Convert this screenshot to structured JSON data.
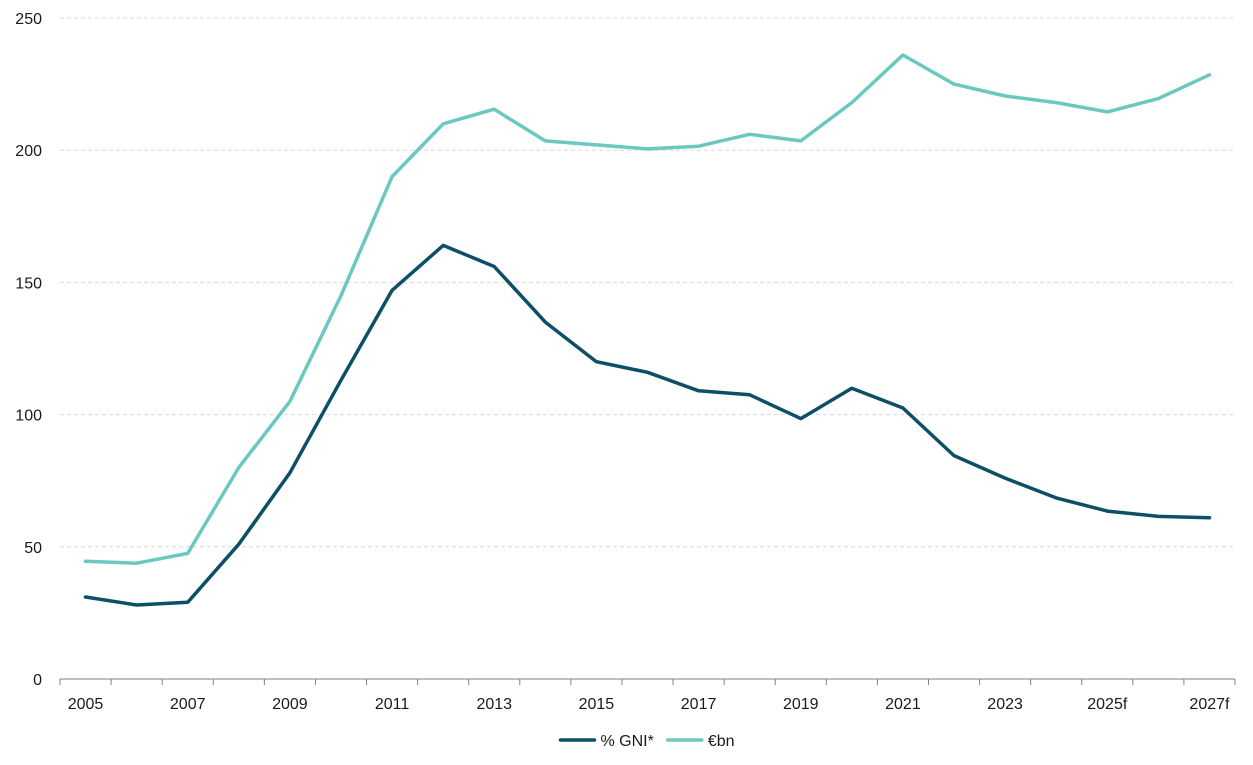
{
  "chart_data": {
    "type": "line",
    "title": "",
    "xlabel": "",
    "ylabel": "",
    "ylim": [
      0,
      250
    ],
    "yticks": [
      0,
      50,
      100,
      150,
      200,
      250
    ],
    "grid": "horizontal dashed",
    "legend_position": "bottom-center",
    "categories": [
      "2005",
      "2006",
      "2007",
      "2008",
      "2009",
      "2010",
      "2011",
      "2012",
      "2013",
      "2014",
      "2015",
      "2016",
      "2017",
      "2018",
      "2019",
      "2020",
      "2021",
      "2022",
      "2023",
      "2024",
      "2025f",
      "2026f",
      "2027f"
    ],
    "xtick_labels": [
      "2005",
      "2007",
      "2009",
      "2011",
      "2013",
      "2015",
      "2017",
      "2019",
      "2021",
      "2023",
      "2025f",
      "2027f"
    ],
    "series": [
      {
        "name": "% GNI*",
        "color": "#0d4f66",
        "values": [
          31,
          28,
          29,
          51,
          78,
          113,
          147,
          164,
          156,
          135,
          120,
          116,
          109,
          107.5,
          98.5,
          110,
          102.5,
          84.5,
          76,
          68.5,
          63.5,
          61.5,
          61
        ]
      },
      {
        "name": "€bn",
        "color": "#6bc8c0",
        "values": [
          44.5,
          43.8,
          47.5,
          80,
          105,
          145,
          190,
          210,
          215.5,
          203.5,
          202,
          200.5,
          201.5,
          206,
          203.5,
          218,
          236,
          225,
          220.5,
          218,
          214.5,
          219.5,
          228.5
        ]
      }
    ]
  }
}
